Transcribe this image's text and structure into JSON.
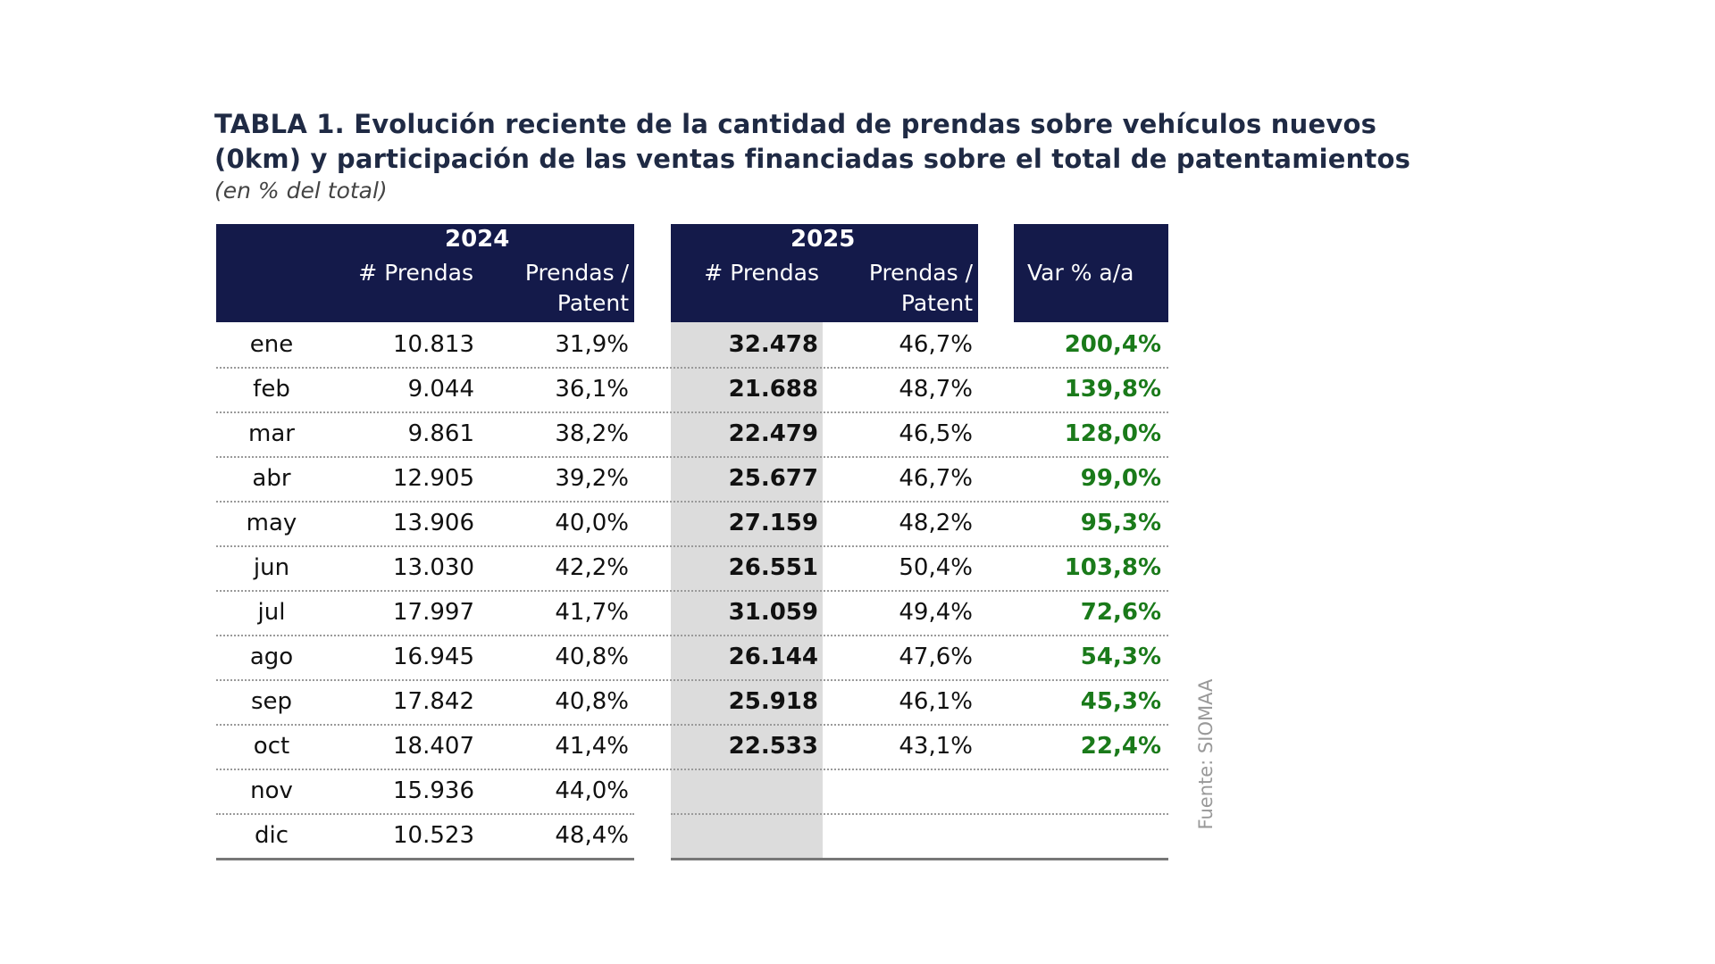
{
  "title_line1": "TABLA 1. Evolución reciente de la cantidad de prendas sobre vehículos nuevos",
  "title_line2": "(0km) y participación de las ventas financiadas sobre el total de patentamientos",
  "subtitle": "(en % del total)",
  "headers": {
    "year_2024": "2024",
    "year_2025": "2025",
    "prendas": "# Prendas",
    "patent_line1": "Prendas /",
    "patent_line2": "Patent",
    "var": "Var % a/a"
  },
  "colors": {
    "header_bg": "#141a4a",
    "positive_var": "#1a7a1a",
    "highlight_col": "#dcdcdc"
  },
  "rows": [
    {
      "month": "ene",
      "p2024": "10.813",
      "pp2024": "31,9%",
      "p2025": "32.478",
      "pp2025": "46,7%",
      "var": "200,4%"
    },
    {
      "month": "feb",
      "p2024": "9.044",
      "pp2024": "36,1%",
      "p2025": "21.688",
      "pp2025": "48,7%",
      "var": "139,8%"
    },
    {
      "month": "mar",
      "p2024": "9.861",
      "pp2024": "38,2%",
      "p2025": "22.479",
      "pp2025": "46,5%",
      "var": "128,0%"
    },
    {
      "month": "abr",
      "p2024": "12.905",
      "pp2024": "39,2%",
      "p2025": "25.677",
      "pp2025": "46,7%",
      "var": "99,0%"
    },
    {
      "month": "may",
      "p2024": "13.906",
      "pp2024": "40,0%",
      "p2025": "27.159",
      "pp2025": "48,2%",
      "var": "95,3%"
    },
    {
      "month": "jun",
      "p2024": "13.030",
      "pp2024": "42,2%",
      "p2025": "26.551",
      "pp2025": "50,4%",
      "var": "103,8%"
    },
    {
      "month": "jul",
      "p2024": "17.997",
      "pp2024": "41,7%",
      "p2025": "31.059",
      "pp2025": "49,4%",
      "var": "72,6%"
    },
    {
      "month": "ago",
      "p2024": "16.945",
      "pp2024": "40,8%",
      "p2025": "26.144",
      "pp2025": "47,6%",
      "var": "54,3%"
    },
    {
      "month": "sep",
      "p2024": "17.842",
      "pp2024": "40,8%",
      "p2025": "25.918",
      "pp2025": "46,1%",
      "var": "45,3%"
    },
    {
      "month": "oct",
      "p2024": "18.407",
      "pp2024": "41,4%",
      "p2025": "22.533",
      "pp2025": "43,1%",
      "var": "22,4%"
    },
    {
      "month": "nov",
      "p2024": "15.936",
      "pp2024": "44,0%",
      "p2025": "",
      "pp2025": "",
      "var": ""
    },
    {
      "month": "dic",
      "p2024": "10.523",
      "pp2024": "48,4%",
      "p2025": "",
      "pp2025": "",
      "var": ""
    }
  ],
  "source": "Fuente: SIOMAA"
}
